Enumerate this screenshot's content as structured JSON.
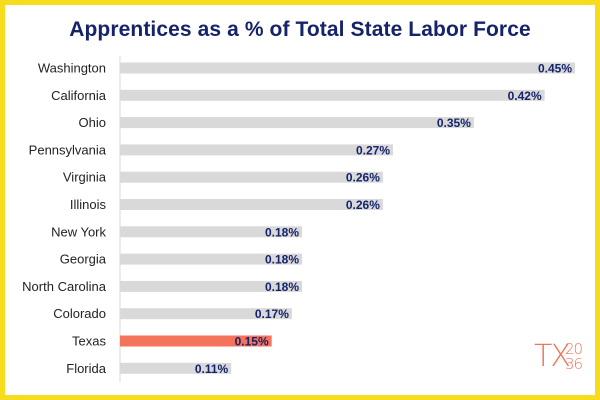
{
  "chart_data": {
    "type": "bar",
    "orientation": "horizontal",
    "title": "Apprentices as a % of Total State Labor Force",
    "categories": [
      "Washington",
      "California",
      "Ohio",
      "Pennsylvania",
      "Virginia",
      "Illinois",
      "New York",
      "Georgia",
      "North Carolina",
      "Colorado",
      "Texas",
      "Florida"
    ],
    "values": [
      0.45,
      0.42,
      0.35,
      0.27,
      0.26,
      0.26,
      0.18,
      0.18,
      0.18,
      0.17,
      0.15,
      0.11
    ],
    "labels": [
      "0.45%",
      "0.42%",
      "0.35%",
      "0.27%",
      "0.26%",
      "0.26%",
      "0.18%",
      "0.18%",
      "0.18%",
      "0.17%",
      "0.15%",
      "0.11%"
    ],
    "highlight": "Texas",
    "xlim": [
      0,
      0.45
    ],
    "unit": "%",
    "grid": false,
    "legend": "none",
    "colors": {
      "bar": "#d9d9d9",
      "highlight_bar": "#f4735a",
      "value_label": "#15236a",
      "title": "#15236a",
      "frame": "#f5dc1e"
    }
  },
  "logo": {
    "text": "TX",
    "year_top": "20",
    "year_bottom": "36",
    "color": "#f0745a"
  }
}
